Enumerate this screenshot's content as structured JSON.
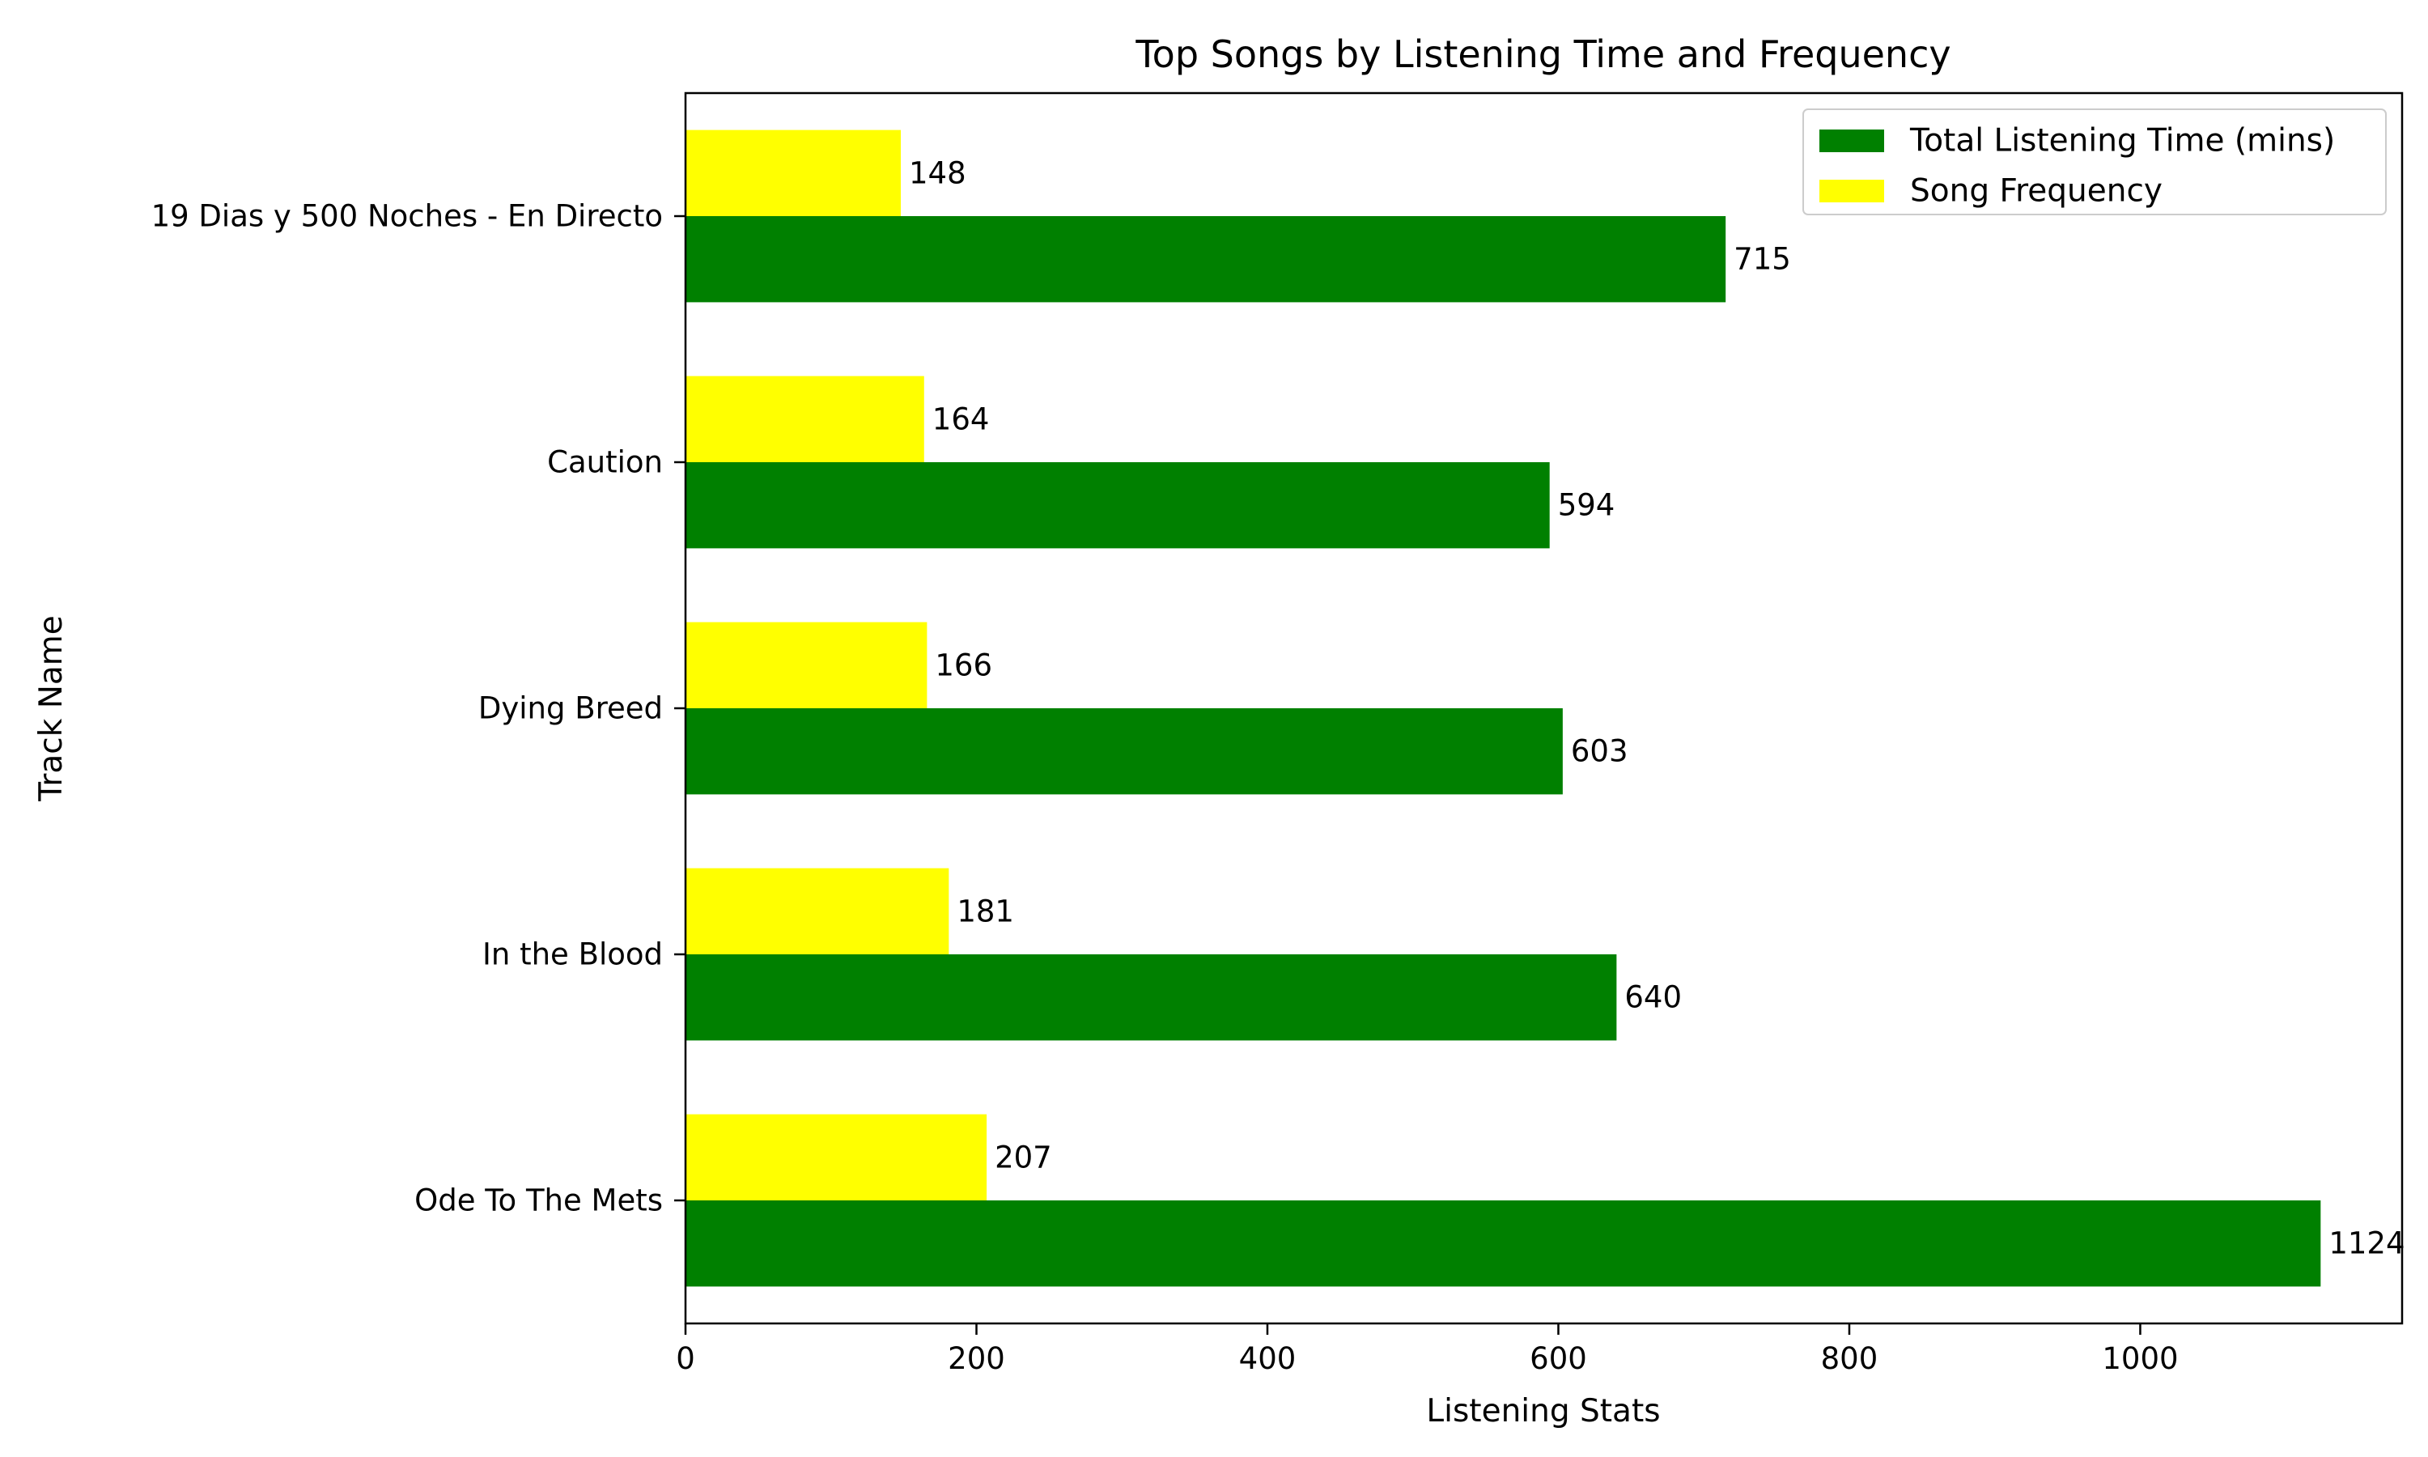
{
  "chart_data": {
    "type": "bar",
    "orientation": "horizontal",
    "title": "Top Songs by Listening Time and Frequency",
    "xlabel": "Listening Stats",
    "ylabel": "Track Name",
    "categories": [
      "19 Dias y 500 Noches - En Directo",
      "Caution",
      "Dying Breed",
      "In the Blood",
      "Ode To The Mets"
    ],
    "series": [
      {
        "name": "Total Listening Time (mins)",
        "color": "#008000",
        "values": [
          715,
          594,
          603,
          640,
          1124
        ]
      },
      {
        "name": "Song Frequency",
        "color": "#ffff00",
        "values": [
          148,
          164,
          166,
          181,
          207
        ]
      }
    ],
    "xlim": [
      0,
      1180
    ],
    "xticks": [
      0,
      200,
      400,
      600,
      800,
      1000
    ],
    "grid": false,
    "legend_position": "top-right"
  }
}
